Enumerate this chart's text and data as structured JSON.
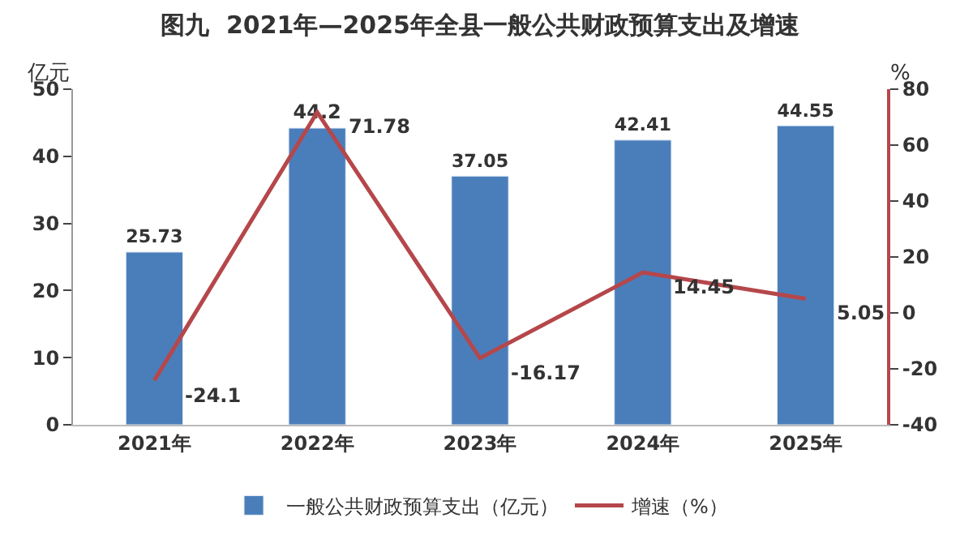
{
  "chart_data": {
    "type": "bar",
    "title": "图九  2021年—2025年全县一般公共财政预算支出及增速",
    "ylabel": "亿元",
    "y2label": "%",
    "categories": [
      "2021年",
      "2022年",
      "2023年",
      "2024年",
      "2025年"
    ],
    "series": [
      {
        "name": "一般公共财政预算支出（亿元）",
        "color": "#4a7ebb",
        "values": [
          25.73,
          44.2,
          37.05,
          42.41,
          44.55
        ]
      },
      {
        "name": "增速（%）",
        "type": "line",
        "axis": "y2",
        "color": "#b5474b",
        "values": [
          -24.1,
          71.78,
          -16.17,
          14.45,
          5.05
        ]
      }
    ],
    "ylim": [
      0,
      50
    ],
    "yticks": [
      0,
      10,
      20,
      30,
      40,
      50
    ],
    "y2lim": [
      -40,
      80
    ],
    "y2ticks": [
      -40,
      -20,
      0,
      20,
      40,
      60,
      80
    ],
    "data_labels": true,
    "legend": "bottom",
    "marker": "none"
  }
}
